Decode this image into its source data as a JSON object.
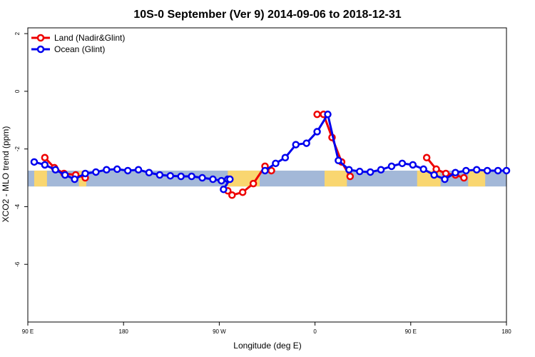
{
  "chart_data": {
    "type": "line",
    "title": "10S-0 September (Ver 9)   2014-09-06 to 2018-12-31",
    "xlabel": "Longitude (deg E)",
    "ylabel": "XCO2 - MLO trend (ppm)",
    "xlim": [
      90,
      540
    ],
    "ylim": [
      -8,
      2.2
    ],
    "x_ticks": [
      {
        "value": 90,
        "label": "90 E"
      },
      {
        "value": 180,
        "label": "180"
      },
      {
        "value": 270,
        "label": "90 W"
      },
      {
        "value": 360,
        "label": "0"
      },
      {
        "value": 450,
        "label": "90 E"
      },
      {
        "value": 540,
        "label": "180"
      }
    ],
    "y_ticks": [
      {
        "value": 2,
        "label": "2"
      },
      {
        "value": 0,
        "label": "0"
      },
      {
        "value": -2,
        "label": "-2"
      },
      {
        "value": -4,
        "label": "-4"
      },
      {
        "value": -6,
        "label": "-6"
      }
    ],
    "grid": false,
    "legend_position": "top-left",
    "colors": {
      "land": "#ee0000",
      "ocean": "#0000ee",
      "map_ocean": "#a3b8d8",
      "map_land": "#f9d670"
    },
    "map_strip": {
      "y_range": [
        -3.3,
        -2.75
      ],
      "land_spans": [
        [
          96,
          108
        ],
        [
          138,
          145
        ],
        [
          278,
          308
        ],
        [
          369,
          390
        ],
        [
          456,
          478
        ],
        [
          504,
          520
        ]
      ]
    },
    "series": [
      {
        "name": "Land (Nadir&Glint)",
        "color": "#ee0000",
        "segments": [
          {
            "x": [
              106,
              115,
              124,
              135,
              144
            ],
            "y": [
              -2.3,
              -2.65,
              -2.85,
              -2.9,
              -3.0
            ]
          },
          {
            "x": [
              278,
              282,
              292,
              302,
              313,
              319
            ],
            "y": [
              -3.45,
              -3.6,
              -3.5,
              -3.2,
              -2.6,
              -2.75
            ]
          },
          {
            "x": [
              362,
              368,
              376,
              385,
              393
            ],
            "y": [
              -0.8,
              -0.8,
              -1.6,
              -2.45,
              -2.95
            ]
          },
          {
            "x": [
              465,
              474,
              483,
              492,
              500
            ],
            "y": [
              -2.3,
              -2.7,
              -2.85,
              -2.9,
              -3.0
            ]
          }
        ]
      },
      {
        "name": "Ocean (Glint)",
        "color": "#0000ee",
        "segments": [
          {
            "x": [
              96,
              106,
              116,
              125,
              134,
              144,
              154,
              164,
              174,
              184,
              194,
              204,
              214,
              224,
              234,
              244,
              254,
              264,
              272,
              278
            ],
            "y": [
              -2.45,
              -2.55,
              -2.72,
              -2.9,
              -3.05,
              -2.85,
              -2.8,
              -2.72,
              -2.7,
              -2.75,
              -2.72,
              -2.82,
              -2.9,
              -2.93,
              -2.95,
              -2.95,
              -3.0,
              -3.05,
              -3.1,
              -3.05
            ]
          },
          {
            "x": [
              274,
              280
            ],
            "y": [
              -3.4,
              -3.05
            ]
          },
          {
            "x": [
              313,
              323,
              332,
              342,
              352,
              362,
              372,
              382,
              392,
              402,
              412,
              422,
              432,
              442,
              452,
              462,
              472,
              482,
              492,
              502,
              512,
              522,
              532,
              540
            ],
            "y": [
              -2.75,
              -2.5,
              -2.3,
              -1.85,
              -1.8,
              -1.4,
              -0.8,
              -2.4,
              -2.72,
              -2.78,
              -2.8,
              -2.72,
              -2.6,
              -2.5,
              -2.55,
              -2.7,
              -2.9,
              -3.05,
              -2.82,
              -2.75,
              -2.72,
              -2.75,
              -2.75,
              -2.75
            ]
          }
        ]
      }
    ]
  }
}
